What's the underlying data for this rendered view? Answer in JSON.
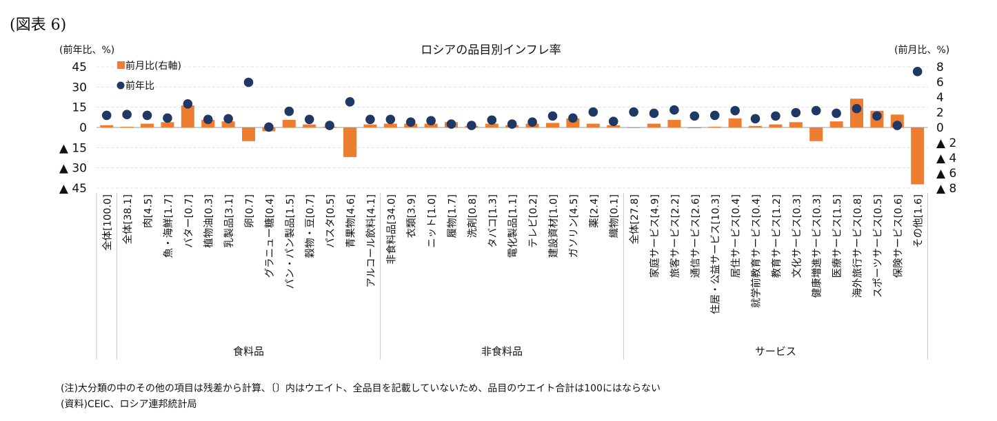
{
  "figure_label": "(図表 6)",
  "chart_data": {
    "type": "bar+scatter",
    "title": "ロシアの品目別インフレ率",
    "ylabel_left": "(前年比、%)",
    "ylabel_right": "(前月比、%)",
    "left_axis": {
      "ylim": [
        -45,
        45
      ],
      "ticks": [
        45,
        30,
        15,
        0,
        -15,
        -30,
        -45
      ],
      "tick_labels": [
        "45",
        "30",
        "15",
        "0",
        "▲ 15",
        "▲ 30",
        "▲ 45"
      ]
    },
    "right_axis": {
      "ylim": [
        -8,
        8
      ],
      "ticks": [
        8,
        6,
        4,
        2,
        0,
        -2,
        -4,
        -6,
        -8
      ],
      "tick_labels": [
        "8",
        "6",
        "4",
        "2",
        "0",
        "▲ 2",
        "▲ 4",
        "▲ 6",
        "▲ 8"
      ]
    },
    "legend": [
      {
        "name": "前月比(右軸)",
        "marker": "bar",
        "color": "#ed7d31"
      },
      {
        "name": "前年比",
        "marker": "dot",
        "color": "#1f3864"
      }
    ],
    "categories": [
      "全体[100.0]",
      "全体[38.1]",
      "肉[4.5]",
      "魚・海鮮[1.7]",
      "バター[0.7]",
      "植物油[0.3]",
      "乳製品[3.1]",
      "卵[0.7]",
      "グラニュー糖[0.4]",
      "パン・パン製品[1.5]",
      "穀物・豆[0.7]",
      "パスタ[0.5]",
      "青果物[4.6]",
      "アルコール飲料[4.1]",
      "非食料品[34.0]",
      "衣類[3.9]",
      "ニット[1.0]",
      "履物[1.7]",
      "洗剤[0.8]",
      "タバコ[1.3]",
      "電化製品[1.1]",
      "テレビ[0.2]",
      "建設資材[1.0]",
      "ガソリン[4.5]",
      "薬[2.4]",
      "織物[0.1]",
      "全体[27.8]",
      "家庭サービス[4.9]",
      "旅客サービス[2.2]",
      "通信サービス[2.6]",
      "住居・公益サービス[10.3]",
      "居住サービス[0.4]",
      "就学前教育サービス[0.4]",
      "教育サービス[1.2]",
      "文化サービス[0.3]",
      "健康増進サービス[0.3]",
      "医療サービス[1.5]",
      "海外旅行サービス[0.8]",
      "スポーツサービス[0.5]",
      "保険サービス[0.6]",
      "その他[1.6]"
    ],
    "groups": [
      {
        "label": "食料品",
        "start": 1,
        "end": 13
      },
      {
        "label": "非食料品",
        "start": 14,
        "end": 25
      },
      {
        "label": "サービス",
        "start": 26,
        "end": 40
      }
    ],
    "series": [
      {
        "name": "前月比(右軸)",
        "axis": "right",
        "type": "bar",
        "values": [
          0.3,
          0.1,
          0.5,
          0.7,
          2.9,
          1.0,
          0.8,
          -1.8,
          -0.5,
          1.0,
          0.4,
          0.1,
          -3.9,
          0.4,
          0.5,
          0.5,
          0.5,
          0.7,
          0.2,
          0.5,
          0.3,
          0.5,
          0.6,
          1.2,
          0.5,
          0.3,
          0.0,
          0.5,
          1.0,
          -0.1,
          0.1,
          1.2,
          0.2,
          0.4,
          0.7,
          -1.8,
          0.8,
          3.8,
          2.2,
          1.7,
          -7.5
        ]
      },
      {
        "name": "前年比",
        "axis": "left",
        "type": "scatter",
        "values": [
          9.0,
          9.6,
          9.0,
          7.0,
          17.5,
          6.0,
          6.5,
          33.5,
          0.3,
          12.0,
          6.0,
          1.5,
          19.0,
          6.0,
          6.0,
          4.0,
          5.0,
          2.5,
          1.5,
          5.5,
          2.5,
          4.0,
          8.5,
          7.0,
          11.5,
          4.5,
          11.5,
          10.5,
          13.0,
          8.5,
          9.0,
          12.5,
          6.5,
          8.5,
          11.0,
          12.5,
          10.5,
          14.0,
          8.5,
          1.5,
          41.5
        ]
      }
    ]
  },
  "notes": [
    "(注)大分類の中のその他の項目は残差から計算、〔〕内はウエイト、全品目を記載していないため、品目のウエイト合計は100にはならない",
    "(資料)CEIC、ロシア連邦統計局"
  ]
}
